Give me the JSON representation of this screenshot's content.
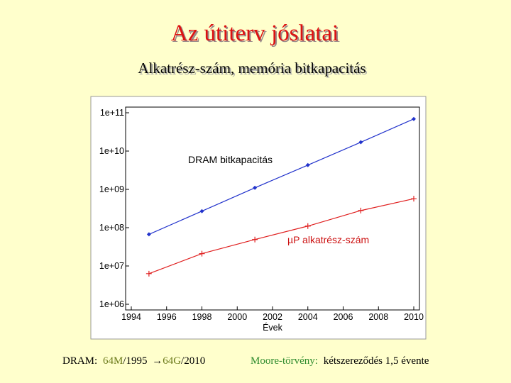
{
  "slide": {
    "title": "Az útiterv jóslatai",
    "subtitle": "Alkatrész-szám, memória bitkapacitás",
    "footer_left": [
      "DRAM:",
      "64M",
      "/1995",
      "→",
      "64G",
      "/2010"
    ],
    "footer_right": [
      "Moore-törvény:",
      "kétszereződés 1,5 évente"
    ]
  },
  "chart_data": {
    "type": "line",
    "log_y": true,
    "grid": false,
    "xlabel": "Évek",
    "xlim": [
      1994,
      2010
    ],
    "xticks": [
      1994,
      1996,
      1998,
      2000,
      2002,
      2004,
      2006,
      2008,
      2010
    ],
    "ylim": [
      1000000,
      100000000000
    ],
    "yticks": [
      {
        "value": 1000000,
        "label": "1e+06"
      },
      {
        "value": 10000000,
        "label": "1e+07"
      },
      {
        "value": 100000000,
        "label": "1e+08"
      },
      {
        "value": 1000000000,
        "label": "1e+09"
      },
      {
        "value": 10000000000,
        "label": "1e+10"
      },
      {
        "value": 100000000000,
        "label": "1e+11"
      }
    ],
    "x": [
      1995,
      1998,
      2001,
      2004,
      2007,
      2010
    ],
    "series": [
      {
        "name": "DRAM bitkapacitás",
        "color": "#2233cc",
        "marker": "diamond",
        "values": [
          67000000,
          270000000,
          1100000000,
          4300000000,
          17000000000,
          69000000000
        ]
      },
      {
        "name": "µP alkatrész-szám",
        "color": "#e02020",
        "marker": "plus",
        "values": [
          6300000,
          21000000,
          49000000,
          110000000,
          280000000,
          570000000
        ]
      }
    ]
  }
}
